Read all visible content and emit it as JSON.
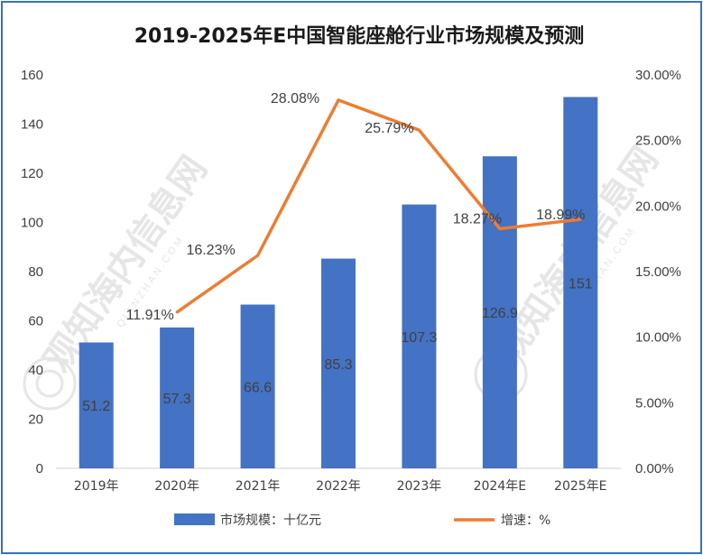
{
  "chart_data": {
    "type": "bar",
    "title": "2019-2025年E中国智能座舱行业市场规模及预测",
    "categories": [
      "2019年",
      "2020年",
      "2021年",
      "2022年",
      "2023年",
      "2024年E",
      "2025年E"
    ],
    "series": [
      {
        "name": "市场规模：十亿元",
        "type": "bar",
        "axis": "left",
        "color": "#4472c4",
        "values": [
          51.2,
          57.3,
          66.6,
          85.3,
          107.3,
          126.9,
          151
        ],
        "labels": [
          "51.2",
          "57.3",
          "66.6",
          "85.3",
          "107.3",
          "126.9",
          "151"
        ]
      },
      {
        "name": "增速：%",
        "type": "line",
        "axis": "right",
        "color": "#ed7d31",
        "values": [
          null,
          11.91,
          16.23,
          28.08,
          25.79,
          18.27,
          18.99
        ],
        "labels": [
          "",
          "11.91%",
          "16.23%",
          "28.08%",
          "25.79%",
          "18.27%",
          "18.99%"
        ]
      }
    ],
    "y_left": {
      "min": 0,
      "max": 160,
      "step": 20,
      "ticks": [
        "0",
        "20",
        "40",
        "60",
        "80",
        "100",
        "120",
        "140",
        "160"
      ]
    },
    "y_right": {
      "min": 0,
      "max": 30,
      "step": 5,
      "ticks": [
        "0.00%",
        "5.00%",
        "10.00%",
        "15.00%",
        "20.00%",
        "25.00%",
        "30.00%"
      ]
    },
    "grid": false,
    "legend_position": "bottom"
  },
  "watermark": {
    "text": "观知海内信息网",
    "sub": "QIANZHAN.COM"
  }
}
